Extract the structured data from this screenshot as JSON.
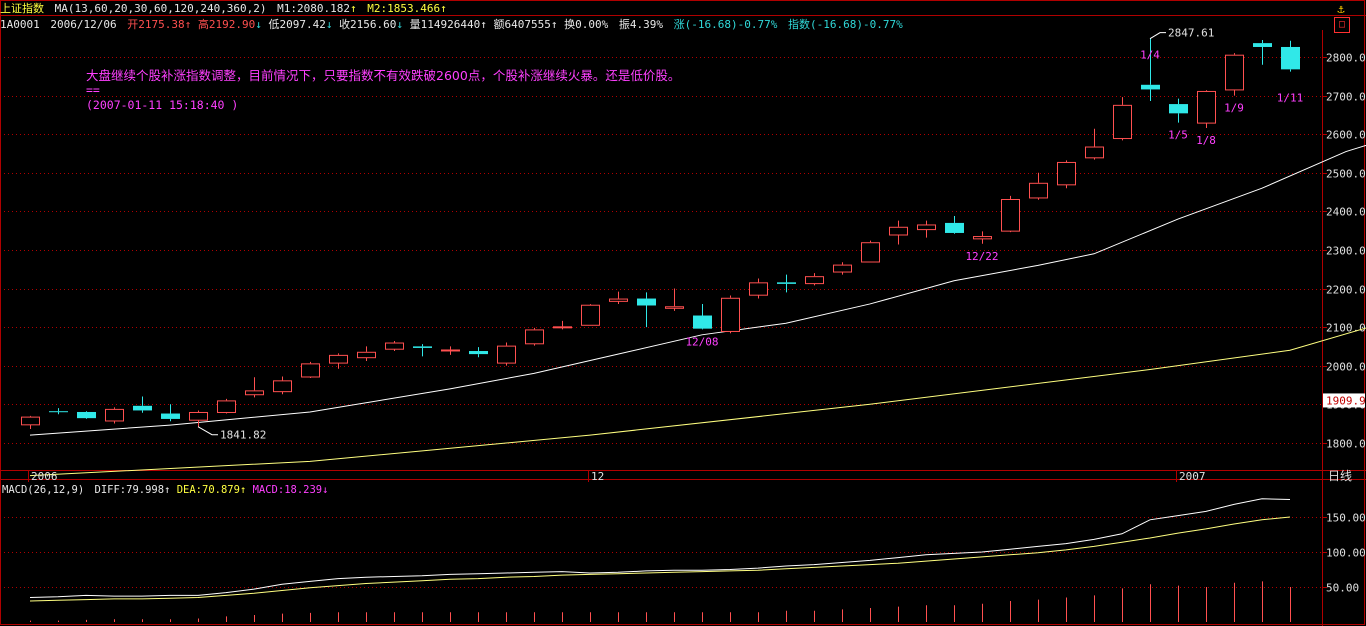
{
  "header": {
    "index_name": "上证指数",
    "ma_label": "MA(13,60,20,30,60,120,240,360,2)",
    "m1_label": "M1:2080.182",
    "m1_arrow": "↑",
    "m2_label": "M2:1853.466",
    "m2_arrow": "↑",
    "code": "1A0001",
    "date": "2006/12/06",
    "open": "开2175.38",
    "open_arrow": "↑",
    "high": "高2192.90",
    "high_arrow": "↓",
    "low": "低2097.42",
    "low_arrow": "↓",
    "close": "收2156.60",
    "close_arrow": "↓",
    "volume": "量114926440",
    "volume_arrow": "↑",
    "amount": "额6407555",
    "amount_arrow": "↑",
    "turnover": "换0.00%",
    "amplitude": "振4.39%",
    "change": "涨(-16.68)-0.77%",
    "index_change": "指数(-16.68)-0.77%"
  },
  "note": {
    "line1": "大盘继续个股补涨指数调整，目前情况下，只要指数不有效跌破2600点，个股补涨继续火暴。还是低价股。",
    "line2": "==",
    "line3": "(2007-01-11 15:18:40 )"
  },
  "toolbar": {
    "pin_icon": "⚓",
    "close_icon": "□"
  },
  "macd": {
    "label": "MACD(26,12,9)",
    "diff": "DIFF:79.998",
    "diff_arrow": "↑",
    "dea": "DEA:70.879",
    "dea_arrow": "↑",
    "macd": "MACD:18.239",
    "macd_arrow": "↓"
  },
  "colors": {
    "up": "#ff5050",
    "down": "#30e8e8",
    "grid": "#b00000",
    "ma_white": "#ffffff",
    "ma_yellow": "#ffff80",
    "annotation": "#ff40ff"
  },
  "chart_data": [
    {
      "type": "candlestick",
      "title": "上证指数",
      "y_ticks": [
        "1800.00",
        "1900.00",
        "2000.00",
        "2100.00",
        "2200.00",
        "2300.00",
        "2400.00",
        "2500.00",
        "2600.00",
        "2700.00",
        "2800.00"
      ],
      "ylim": [
        1740,
        2870
      ],
      "current_price_tag": "1909.9",
      "x_labels": [
        {
          "label": "2006",
          "index": 0
        },
        {
          "label": "12",
          "index": 20
        },
        {
          "label": "2007",
          "index": 41
        }
      ],
      "period_label": "日线",
      "candles": [
        {
          "o": 1848,
          "h": 1870,
          "l": 1836,
          "c": 1868
        },
        {
          "o": 1882,
          "h": 1890,
          "l": 1874,
          "c": 1880
        },
        {
          "o": 1880,
          "h": 1882,
          "l": 1862,
          "c": 1864
        },
        {
          "o": 1858,
          "h": 1892,
          "l": 1850,
          "c": 1888
        },
        {
          "o": 1896,
          "h": 1920,
          "l": 1878,
          "c": 1884
        },
        {
          "o": 1876,
          "h": 1900,
          "l": 1856,
          "c": 1862
        },
        {
          "o": 1860,
          "h": 1884,
          "l": 1841.82,
          "c": 1880
        },
        {
          "o": 1880,
          "h": 1914,
          "l": 1876,
          "c": 1910
        },
        {
          "o": 1926,
          "h": 1970,
          "l": 1918,
          "c": 1936
        },
        {
          "o": 1934,
          "h": 1972,
          "l": 1926,
          "c": 1962
        },
        {
          "o": 1972,
          "h": 2010,
          "l": 1968,
          "c": 2006
        },
        {
          "o": 2008,
          "h": 2032,
          "l": 1992,
          "c": 2028
        },
        {
          "o": 2022,
          "h": 2050,
          "l": 2012,
          "c": 2036
        },
        {
          "o": 2044,
          "h": 2064,
          "l": 2038,
          "c": 2060
        },
        {
          "o": 2050,
          "h": 2056,
          "l": 2024,
          "c": 2046
        },
        {
          "o": 2040,
          "h": 2050,
          "l": 2028,
          "c": 2042
        },
        {
          "o": 2038,
          "h": 2048,
          "l": 2022,
          "c": 2030
        },
        {
          "o": 2008,
          "h": 2060,
          "l": 2000,
          "c": 2052
        },
        {
          "o": 2058,
          "h": 2098,
          "l": 2052,
          "c": 2094
        },
        {
          "o": 2102,
          "h": 2116,
          "l": 2094,
          "c": 2102
        },
        {
          "o": 2106,
          "h": 2160,
          "l": 2104,
          "c": 2158
        },
        {
          "o": 2168,
          "h": 2192,
          "l": 2160,
          "c": 2174
        },
        {
          "o": 2174,
          "h": 2190,
          "l": 2100,
          "c": 2156
        },
        {
          "o": 2150,
          "h": 2200,
          "l": 2142,
          "c": 2154
        },
        {
          "o": 2130,
          "h": 2160,
          "l": 2094,
          "c": 2096
        },
        {
          "o": 2090,
          "h": 2182,
          "l": 2084,
          "c": 2176
        },
        {
          "o": 2184,
          "h": 2226,
          "l": 2174,
          "c": 2216
        },
        {
          "o": 2216,
          "h": 2236,
          "l": 2190,
          "c": 2212
        },
        {
          "o": 2214,
          "h": 2240,
          "l": 2208,
          "c": 2232
        },
        {
          "o": 2244,
          "h": 2268,
          "l": 2236,
          "c": 2262
        },
        {
          "o": 2270,
          "h": 2324,
          "l": 2268,
          "c": 2320
        },
        {
          "o": 2340,
          "h": 2376,
          "l": 2314,
          "c": 2360
        },
        {
          "o": 2354,
          "h": 2376,
          "l": 2332,
          "c": 2366
        },
        {
          "o": 2370,
          "h": 2388,
          "l": 2342,
          "c": 2344
        },
        {
          "o": 2330,
          "h": 2348,
          "l": 2316,
          "c": 2336
        },
        {
          "o": 2350,
          "h": 2440,
          "l": 2346,
          "c": 2432
        },
        {
          "o": 2436,
          "h": 2500,
          "l": 2430,
          "c": 2474
        },
        {
          "o": 2470,
          "h": 2532,
          "l": 2460,
          "c": 2528
        },
        {
          "o": 2540,
          "h": 2614,
          "l": 2534,
          "c": 2568
        },
        {
          "o": 2590,
          "h": 2696,
          "l": 2584,
          "c": 2676
        },
        {
          "o": 2728,
          "h": 2847.61,
          "l": 2686,
          "c": 2716
        },
        {
          "o": 2678,
          "h": 2692,
          "l": 2630,
          "c": 2654
        },
        {
          "o": 2630,
          "h": 2714,
          "l": 2616,
          "c": 2712
        },
        {
          "o": 2716,
          "h": 2810,
          "l": 2700,
          "c": 2806
        },
        {
          "o": 2836,
          "h": 2844,
          "l": 2780,
          "c": 2826
        },
        {
          "o": 2826,
          "h": 2842,
          "l": 2762,
          "c": 2768
        }
      ],
      "ma_white": [
        [
          0,
          1820
        ],
        [
          5,
          1846
        ],
        [
          10,
          1880
        ],
        [
          15,
          1940
        ],
        [
          18,
          1980
        ],
        [
          21,
          2030
        ],
        [
          24,
          2080
        ],
        [
          27,
          2110
        ],
        [
          30,
          2160
        ],
        [
          33,
          2220
        ],
        [
          36,
          2260
        ],
        [
          38,
          2290
        ],
        [
          41,
          2380
        ],
        [
          44,
          2460
        ],
        [
          47,
          2555
        ],
        [
          49,
          2600
        ]
      ],
      "ma_yellow": [
        [
          0,
          1715
        ],
        [
          10,
          1752
        ],
        [
          20,
          1820
        ],
        [
          30,
          1900
        ],
        [
          40,
          1990
        ],
        [
          45,
          2040
        ],
        [
          49,
          2125
        ]
      ],
      "annotations": [
        {
          "label": "1841.82",
          "index": 6,
          "price": 1841.82
        },
        {
          "label": "2847.61",
          "index": 40,
          "price": 2847.61
        },
        {
          "label": "1/4",
          "index": 40
        },
        {
          "label": "1/5",
          "index": 41
        },
        {
          "label": "1/8",
          "index": 42
        },
        {
          "label": "1/9",
          "index": 43
        },
        {
          "label": "1/11",
          "index": 45
        },
        {
          "label": "12/08",
          "index": 24
        },
        {
          "label": "12/22",
          "index": 34
        }
      ]
    },
    {
      "type": "line",
      "title": "MACD(26,12,9)",
      "y_ticks": [
        "50.00",
        "100.00",
        "150.00"
      ],
      "ylim": [
        0,
        200
      ],
      "series": [
        {
          "name": "DIFF",
          "values": [
            35,
            36,
            38,
            37,
            37,
            38,
            38,
            42,
            47,
            54,
            58,
            62,
            64,
            65,
            66,
            68,
            69,
            70,
            71,
            72,
            70,
            71,
            73,
            74,
            74,
            75,
            77,
            80,
            82,
            85,
            88,
            92,
            96,
            98,
            100,
            104,
            108,
            112,
            118,
            126,
            146,
            152,
            158,
            168,
            176,
            175
          ]
        },
        {
          "name": "DEA",
          "values": [
            30,
            31,
            32,
            33,
            33,
            34,
            35,
            38,
            41,
            45,
            49,
            52,
            55,
            57,
            59,
            61,
            62,
            64,
            65,
            67,
            68,
            69,
            70,
            71,
            72,
            73,
            74,
            76,
            78,
            80,
            82,
            84,
            87,
            90,
            93,
            96,
            99,
            103,
            108,
            114,
            120,
            127,
            133,
            140,
            146,
            150
          ]
        }
      ],
      "macd_bars": [
        2,
        2,
        3,
        4,
        4,
        4,
        5,
        8,
        10,
        12,
        13,
        14,
        14,
        14,
        14,
        14,
        14,
        14,
        14,
        14,
        14,
        14,
        14,
        14,
        14,
        14,
        14,
        16,
        16,
        18,
        20,
        22,
        24,
        24,
        26,
        30,
        32,
        35,
        38,
        48,
        54,
        52,
        50,
        56,
        58,
        50
      ]
    }
  ]
}
